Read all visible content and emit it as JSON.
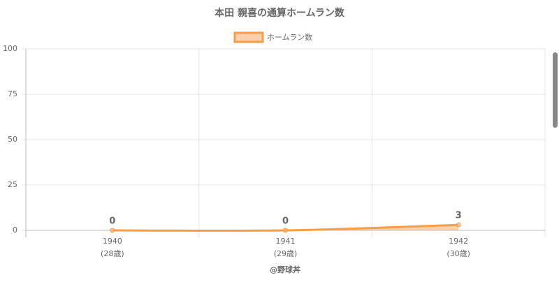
{
  "chart_data": {
    "type": "line",
    "title": "本田 親喜の通算ホームラン数",
    "categories": [
      "1940",
      "1941",
      "1942"
    ],
    "category_sublabels": [
      "(28歳)",
      "(29歳)",
      "(30歳)"
    ],
    "series": [
      {
        "name": "ホームラン数",
        "color": "#f79d45",
        "fill": "rgba(250,170,100,0.55)",
        "values": [
          0,
          0,
          3
        ]
      }
    ],
    "ylim": [
      0,
      100
    ],
    "yticks": [
      0,
      25,
      50,
      75,
      100
    ],
    "grid": true,
    "xlabel": "@野球丼"
  }
}
